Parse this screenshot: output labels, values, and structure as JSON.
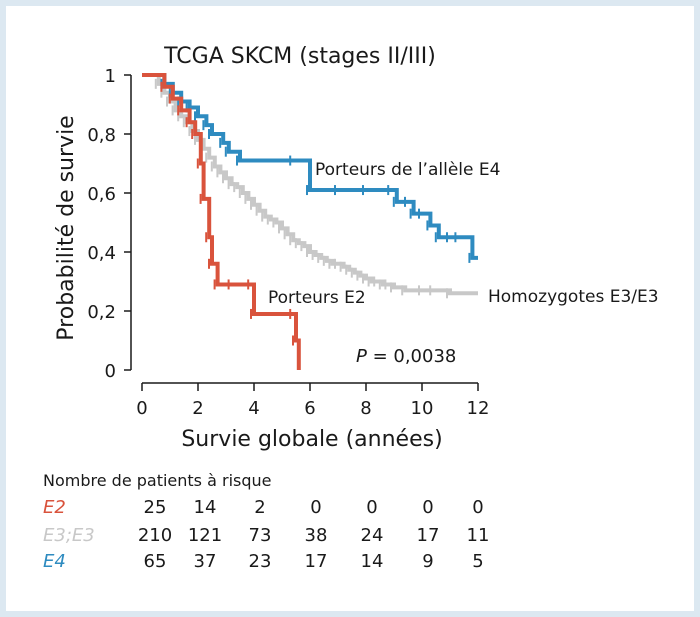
{
  "chart_data": {
    "type": "line",
    "title": "TCGA SKCM (stages II/III)",
    "xlabel": "Survie globale (années)",
    "ylabel": "Probabilité de survie",
    "xlim": [
      0,
      12
    ],
    "ylim": [
      0,
      1
    ],
    "xticks": [
      "0",
      "2",
      "4",
      "6",
      "8",
      "10",
      "12"
    ],
    "yticks": [
      "0",
      "0,2",
      "0,4",
      "0,6",
      "0,8",
      "1"
    ],
    "pvalue_label": "P",
    "pvalue_value": " = 0,0038",
    "series": [
      {
        "name": "Homozygotes E3/E3",
        "color": "#c8c8c8",
        "x": [
          0,
          0.6,
          0.8,
          1.0,
          1.2,
          1.4,
          1.6,
          1.8,
          2.0,
          2.2,
          2.4,
          2.6,
          2.8,
          3.0,
          3.2,
          3.4,
          3.6,
          3.8,
          4.0,
          4.2,
          4.4,
          4.6,
          4.8,
          5.0,
          5.2,
          5.4,
          5.6,
          5.8,
          6.0,
          6.2,
          6.4,
          6.6,
          6.8,
          7.0,
          7.2,
          7.4,
          7.6,
          7.8,
          8.0,
          8.2,
          8.4,
          8.6,
          8.8,
          9.0,
          9.4,
          10.0,
          10.4,
          11.0,
          12.0
        ],
        "y": [
          1.0,
          0.97,
          0.94,
          0.91,
          0.88,
          0.86,
          0.84,
          0.81,
          0.78,
          0.75,
          0.72,
          0.69,
          0.67,
          0.65,
          0.63,
          0.62,
          0.6,
          0.58,
          0.56,
          0.54,
          0.52,
          0.51,
          0.5,
          0.48,
          0.46,
          0.44,
          0.43,
          0.42,
          0.4,
          0.39,
          0.38,
          0.37,
          0.36,
          0.36,
          0.35,
          0.34,
          0.33,
          0.32,
          0.31,
          0.3,
          0.3,
          0.29,
          0.29,
          0.28,
          0.27,
          0.27,
          0.27,
          0.26,
          0.26
        ],
        "label": "Homozygotes E3/E3"
      },
      {
        "name": "Porteurs de l'allèle E4",
        "color": "#2e8bc0",
        "x": [
          0,
          0.8,
          1.1,
          1.4,
          1.7,
          2.0,
          2.3,
          2.5,
          2.9,
          3.1,
          3.5,
          5.4,
          6.0,
          7.0,
          8.0,
          8.9,
          9.1,
          9.5,
          9.7,
          10.0,
          10.3,
          10.6,
          11.0,
          11.3,
          11.8,
          12.0
        ],
        "y": [
          1.0,
          0.97,
          0.94,
          0.91,
          0.89,
          0.86,
          0.83,
          0.8,
          0.77,
          0.74,
          0.71,
          0.71,
          0.61,
          0.61,
          0.61,
          0.61,
          0.57,
          0.57,
          0.53,
          0.53,
          0.49,
          0.45,
          0.45,
          0.45,
          0.38,
          0.38
        ],
        "label": "Porteurs de l’allèle E4"
      },
      {
        "name": "Porteurs E2",
        "color": "#d9533c",
        "x": [
          0,
          0.8,
          1.1,
          1.4,
          1.7,
          1.9,
          2.1,
          2.2,
          2.4,
          2.5,
          2.7,
          3.2,
          3.9,
          4.0,
          5.4,
          5.5,
          5.6
        ],
        "y": [
          1.0,
          0.96,
          0.92,
          0.88,
          0.84,
          0.8,
          0.7,
          0.58,
          0.45,
          0.36,
          0.29,
          0.29,
          0.29,
          0.19,
          0.19,
          0.1,
          0.0
        ],
        "label": "Porteurs E2"
      }
    ]
  },
  "risk_table": {
    "title": "Nombre de patients à risque",
    "rows": [
      {
        "label": "E2",
        "color": "#d9533c",
        "values": [
          "25",
          "14",
          "2",
          "0",
          "0",
          "0",
          "0"
        ]
      },
      {
        "label": "E3;E3",
        "color": "#c8c8c8",
        "values": [
          "210",
          "121",
          "73",
          "38",
          "24",
          "17",
          "11"
        ]
      },
      {
        "label": "E4",
        "color": "#2e8bc0",
        "values": [
          "65",
          "37",
          "23",
          "17",
          "14",
          "9",
          "5"
        ]
      }
    ]
  }
}
